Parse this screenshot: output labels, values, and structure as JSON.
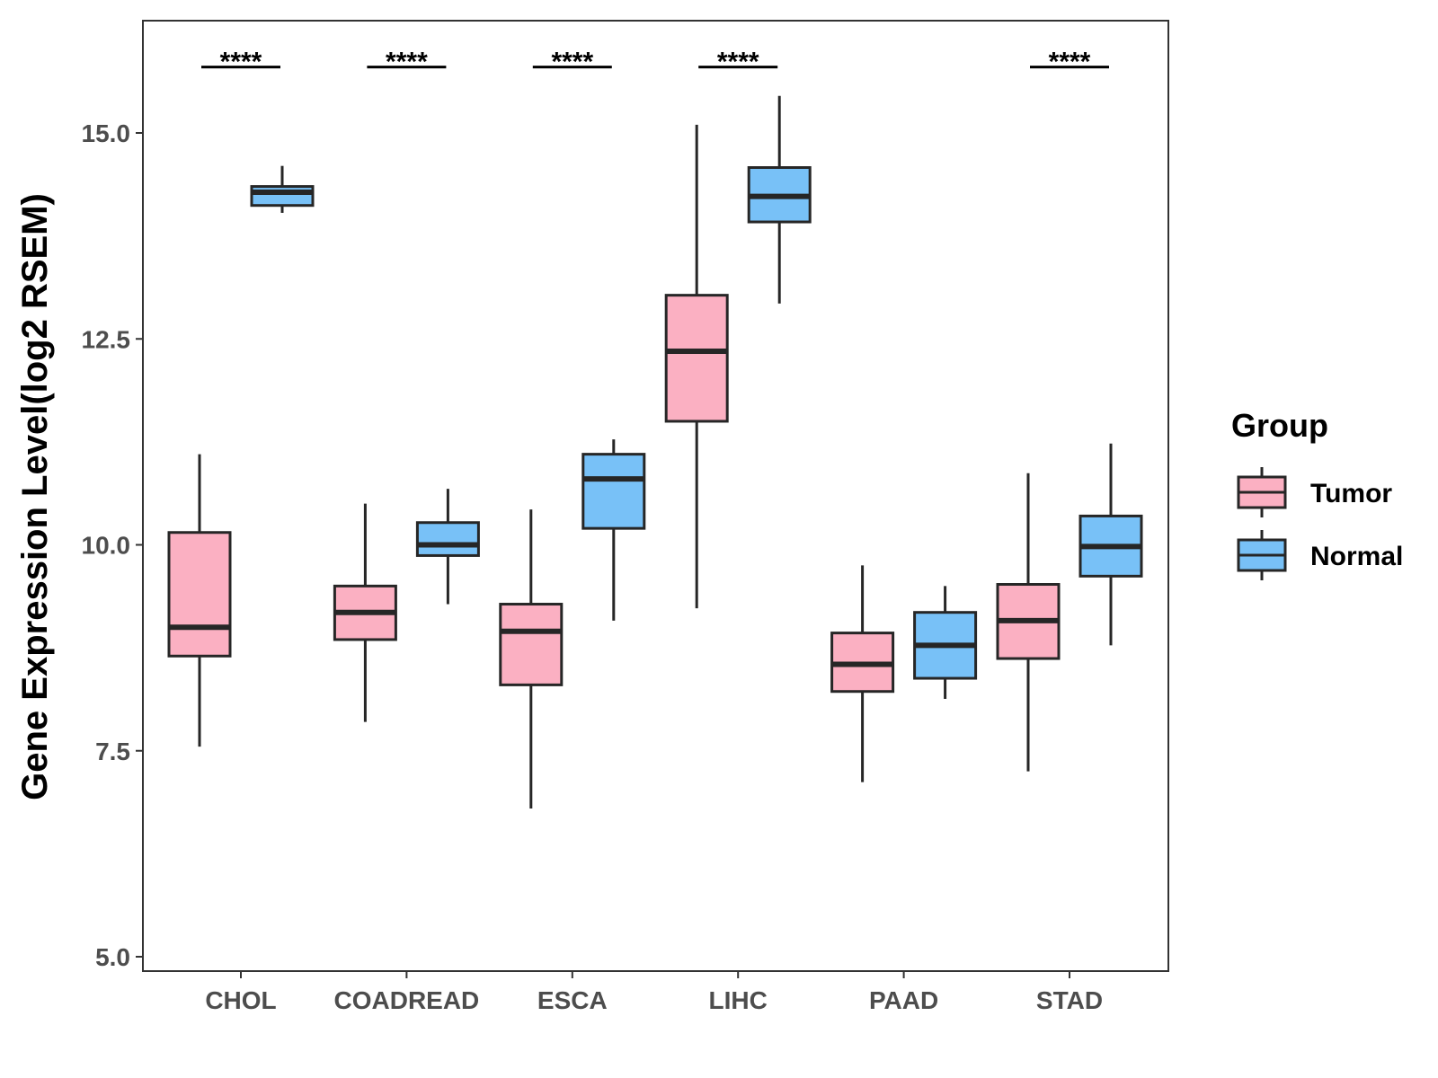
{
  "chart_data": {
    "type": "boxplot",
    "title": "",
    "xlabel": "",
    "ylabel": "Gene Expression Level(log2 RSEM)",
    "ylim": [
      4.8,
      16.5
    ],
    "yticks": [
      5.0,
      7.5,
      10.0,
      12.5,
      15.0
    ],
    "ytick_labels": [
      "5.0",
      "7.5",
      "10.0",
      "12.5",
      "15.0"
    ],
    "categories": [
      "CHOL",
      "COADREAD",
      "ESCA",
      "LIHC",
      "PAAD",
      "STAD"
    ],
    "significance": [
      "****",
      "****",
      "****",
      "****",
      "",
      "****"
    ],
    "significance_level": 15.8,
    "legend": {
      "title": "Group",
      "position": "right",
      "entries": [
        {
          "name": "Tumor",
          "color": "#FBB0C2"
        },
        {
          "name": "Normal",
          "color": "#78C1F7"
        }
      ]
    },
    "series": [
      {
        "name": "Tumor",
        "color": "#FBB0C2",
        "boxes": [
          {
            "whisker_low": 7.55,
            "q1": 8.65,
            "median": 9.0,
            "q3": 10.15,
            "whisker_high": 11.1
          },
          {
            "whisker_low": 7.85,
            "q1": 8.85,
            "median": 9.18,
            "q3": 9.5,
            "whisker_high": 10.5
          },
          {
            "whisker_low": 6.8,
            "q1": 8.3,
            "median": 8.95,
            "q3": 9.28,
            "whisker_high": 10.43
          },
          {
            "whisker_low": 9.23,
            "q1": 11.5,
            "median": 12.35,
            "q3": 13.03,
            "whisker_high": 15.1
          },
          {
            "whisker_low": 7.12,
            "q1": 8.22,
            "median": 8.55,
            "q3": 8.93,
            "whisker_high": 9.75
          },
          {
            "whisker_low": 7.25,
            "q1": 8.62,
            "median": 9.08,
            "q3": 9.52,
            "whisker_high": 10.87
          }
        ]
      },
      {
        "name": "Normal",
        "color": "#78C1F7",
        "boxes": [
          {
            "whisker_low": 14.03,
            "q1": 14.12,
            "median": 14.28,
            "q3": 14.35,
            "whisker_high": 14.6
          },
          {
            "whisker_low": 9.28,
            "q1": 9.87,
            "median": 10.0,
            "q3": 10.27,
            "whisker_high": 10.68
          },
          {
            "whisker_low": 9.08,
            "q1": 10.2,
            "median": 10.8,
            "q3": 11.1,
            "whisker_high": 11.28
          },
          {
            "whisker_low": 12.93,
            "q1": 13.92,
            "median": 14.23,
            "q3": 14.58,
            "whisker_high": 15.45
          },
          {
            "whisker_low": 8.13,
            "q1": 8.38,
            "median": 8.78,
            "q3": 9.18,
            "whisker_high": 9.5
          },
          {
            "whisker_low": 8.78,
            "q1": 9.62,
            "median": 9.98,
            "q3": 10.35,
            "whisker_high": 11.23
          }
        ]
      }
    ]
  }
}
